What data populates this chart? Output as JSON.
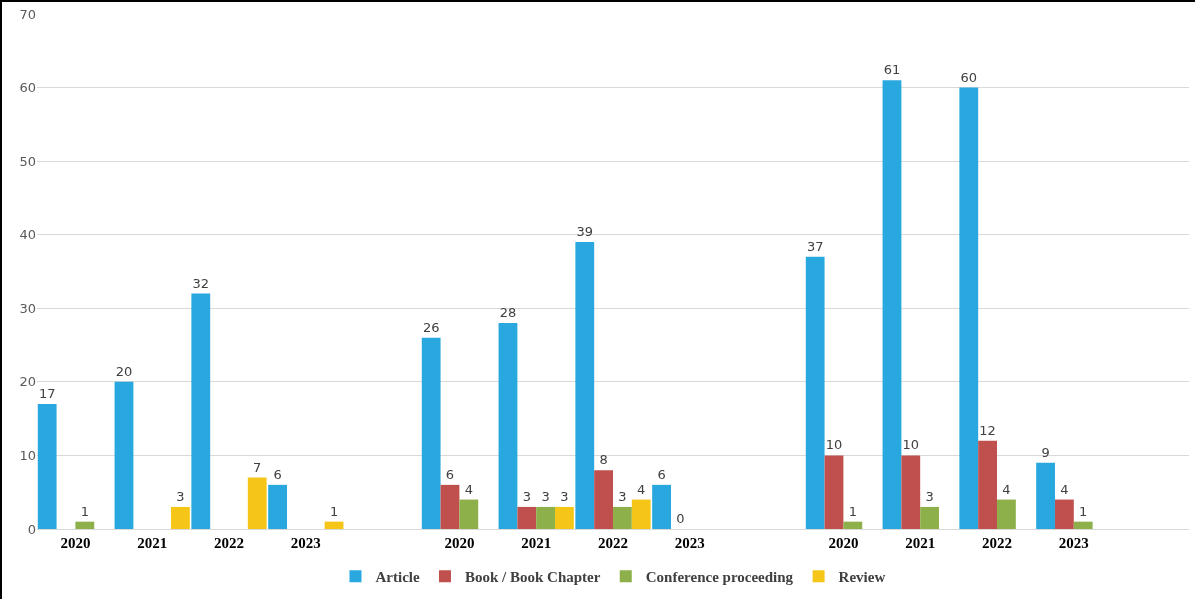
{
  "chart_data": {
    "type": "bar",
    "categories": [
      "2020",
      "2021",
      "2022",
      "2023",
      null,
      "2020",
      "2021",
      "2022",
      "2023",
      null,
      "2020",
      "2021",
      "2022",
      "2023",
      null
    ],
    "series": [
      {
        "name": "Article",
        "color": "#29a8e0",
        "values": [
          17,
          20,
          32,
          6,
          null,
          26,
          28,
          39,
          6,
          null,
          37,
          61,
          60,
          9,
          null
        ]
      },
      {
        "name": "Book / Book Chapter",
        "color": "#c0504d",
        "values": [
          null,
          null,
          null,
          null,
          null,
          6,
          3,
          8,
          0,
          null,
          10,
          10,
          12,
          4,
          null
        ]
      },
      {
        "name": "Conference proceeding",
        "color": "#8db04a",
        "values": [
          1,
          null,
          null,
          null,
          null,
          4,
          3,
          3,
          null,
          null,
          1,
          3,
          4,
          1,
          null
        ]
      },
      {
        "name": "Review",
        "color": "#f5c518",
        "values": [
          null,
          3,
          7,
          1,
          null,
          null,
          3,
          4,
          null,
          null,
          null,
          null,
          null,
          null,
          null
        ]
      }
    ],
    "ylim": [
      0,
      70
    ],
    "yticks": [
      0,
      10,
      20,
      30,
      40,
      50,
      60,
      70
    ],
    "grid": "y",
    "legend": "bottom",
    "data_labels": true
  }
}
